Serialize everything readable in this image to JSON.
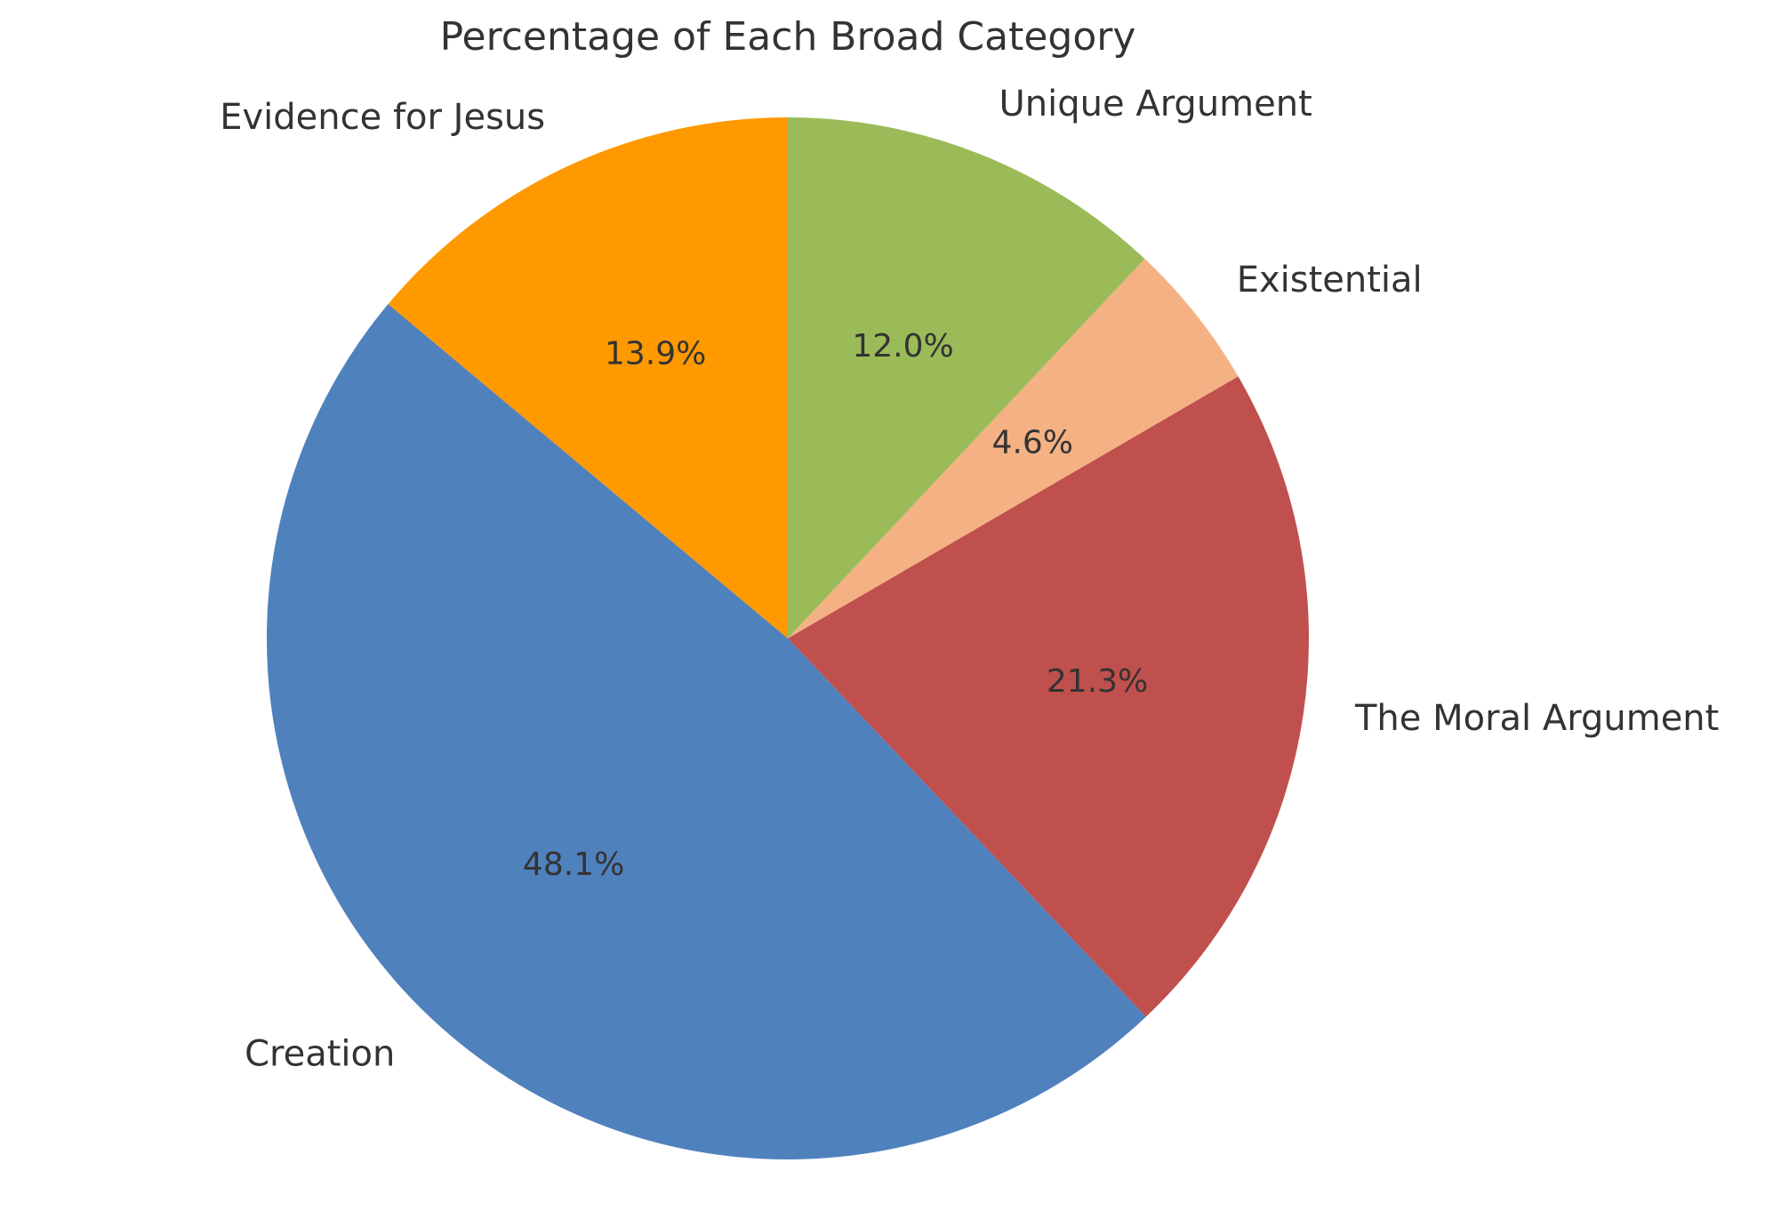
{
  "chart_data": {
    "type": "pie",
    "title": "Percentage of Each Broad Category",
    "start_angle_deg": 90,
    "direction": "clockwise",
    "slices": [
      {
        "label": "Unique Argument",
        "value": 12.0,
        "pct_text": "12.0%",
        "color": "#9BBB59"
      },
      {
        "label": "Existential",
        "value": 4.6,
        "pct_text": "4.6%",
        "color": "#F4B183"
      },
      {
        "label": "The Moral Argument",
        "value": 21.3,
        "pct_text": "21.3%",
        "color": "#C0504D"
      },
      {
        "label": "Creation",
        "value": 48.1,
        "pct_text": "48.1%",
        "color": "#4F81BD"
      },
      {
        "label": "Evidence for Jesus",
        "value": 13.9,
        "pct_text": "13.9%",
        "color": "#FF9900"
      }
    ],
    "legend": "none"
  }
}
